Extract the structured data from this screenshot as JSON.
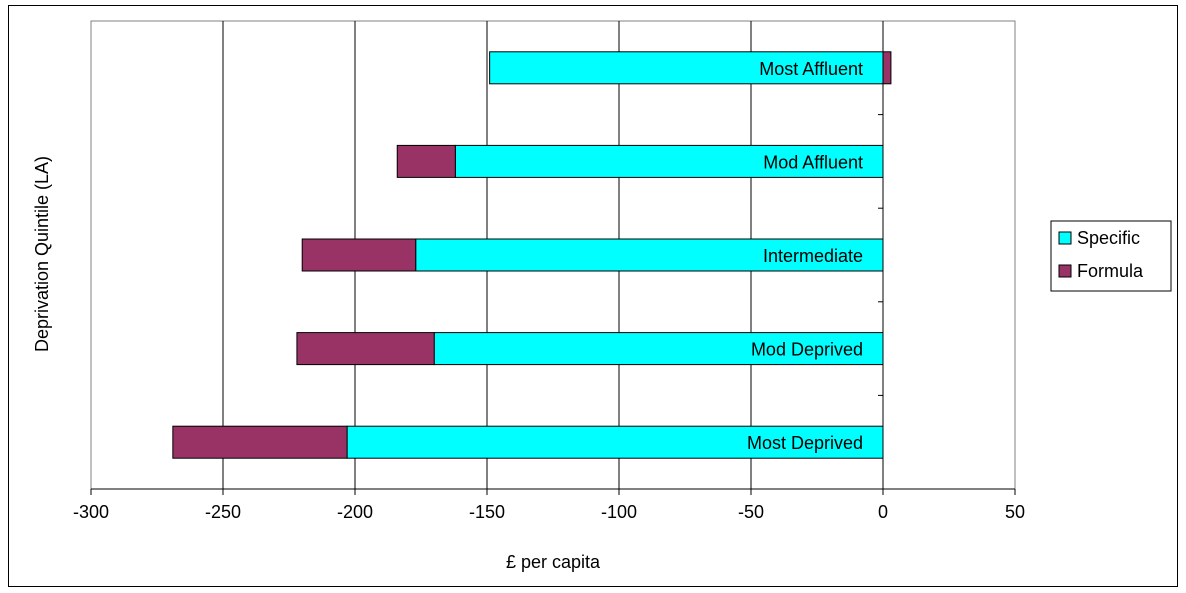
{
  "chart_data": {
    "type": "bar",
    "orientation": "horizontal",
    "stacked": true,
    "title": "",
    "xlabel": "£ per capita",
    "ylabel": "Deprivation Quintile (LA)",
    "xlim": [
      -300,
      50
    ],
    "xticks": [
      -300,
      -250,
      -200,
      -150,
      -100,
      -50,
      0,
      50
    ],
    "categories": [
      "Most Deprived",
      "Mod Deprived",
      "Intermediate",
      "Mod Affluent",
      "Most Affluent"
    ],
    "series": [
      {
        "name": "Specific",
        "color": "#00ffff",
        "values": [
          -203,
          -170,
          -177,
          -162,
          -149
        ]
      },
      {
        "name": "Formula",
        "color": "#993366",
        "values": [
          -66,
          -52,
          -43,
          -22,
          3
        ]
      }
    ],
    "grid": "vertical major lines",
    "legend": "right",
    "category_labels_inside_bars": true
  }
}
